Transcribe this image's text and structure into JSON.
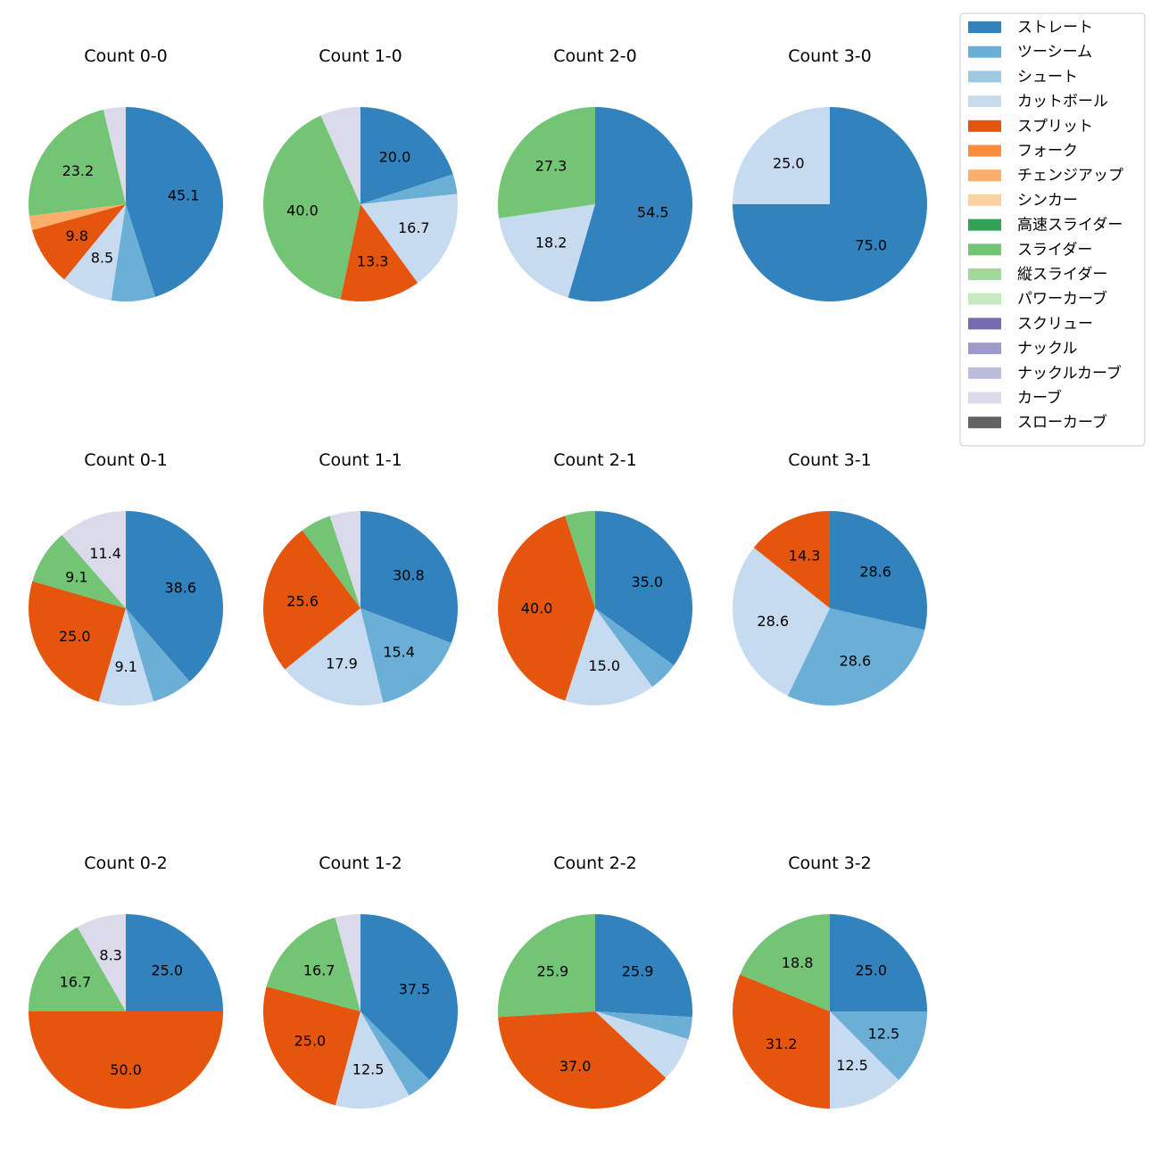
{
  "chart_data": {
    "type": "pie",
    "legend": {
      "placement": "top-right",
      "entries": [
        {
          "name": "ストレート",
          "color": "#3182bd"
        },
        {
          "name": "ツーシーム",
          "color": "#6baed6"
        },
        {
          "name": "シュート",
          "color": "#9ecae1"
        },
        {
          "name": "カットボール",
          "color": "#c6dbef"
        },
        {
          "name": "スプリット",
          "color": "#e6550d"
        },
        {
          "name": "フォーク",
          "color": "#fd8d3c"
        },
        {
          "name": "チェンジアップ",
          "color": "#fdae6b"
        },
        {
          "name": "シンカー",
          "color": "#fdd0a2"
        },
        {
          "name": "高速スライダー",
          "color": "#31a354"
        },
        {
          "name": "スライダー",
          "color": "#74c476"
        },
        {
          "name": "縦スライダー",
          "color": "#a1d99b"
        },
        {
          "name": "パワーカーブ",
          "color": "#c7e9c0"
        },
        {
          "name": "スクリュー",
          "color": "#756bb1"
        },
        {
          "name": "ナックル",
          "color": "#9e9ac8"
        },
        {
          "name": "ナックルカーブ",
          "color": "#bcbddc"
        },
        {
          "name": "カーブ",
          "color": "#dadaeb"
        },
        {
          "name": "スローカーブ",
          "color": "#636363"
        }
      ]
    },
    "charts": [
      {
        "title": "Count 0-0",
        "slices": [
          {
            "pitch": "ストレート",
            "value": 45.1,
            "label": "45.1"
          },
          {
            "pitch": "ツーシーム",
            "value": 7.3,
            "label": ""
          },
          {
            "pitch": "カットボール",
            "value": 8.5,
            "label": "8.5"
          },
          {
            "pitch": "スプリット",
            "value": 9.8,
            "label": "9.8"
          },
          {
            "pitch": "チェンジアップ",
            "value": 2.4,
            "label": ""
          },
          {
            "pitch": "スライダー",
            "value": 23.2,
            "label": "23.2"
          },
          {
            "pitch": "カーブ",
            "value": 3.7,
            "label": ""
          }
        ]
      },
      {
        "title": "Count 1-0",
        "slices": [
          {
            "pitch": "ストレート",
            "value": 20.0,
            "label": "20.0"
          },
          {
            "pitch": "ツーシーム",
            "value": 3.3,
            "label": ""
          },
          {
            "pitch": "カットボール",
            "value": 16.7,
            "label": "16.7"
          },
          {
            "pitch": "スプリット",
            "value": 13.3,
            "label": "13.3"
          },
          {
            "pitch": "スライダー",
            "value": 40.0,
            "label": "40.0"
          },
          {
            "pitch": "カーブ",
            "value": 6.7,
            "label": ""
          }
        ]
      },
      {
        "title": "Count 2-0",
        "slices": [
          {
            "pitch": "ストレート",
            "value": 54.5,
            "label": "54.5"
          },
          {
            "pitch": "カットボール",
            "value": 18.2,
            "label": "18.2"
          },
          {
            "pitch": "スライダー",
            "value": 27.3,
            "label": "27.3"
          }
        ]
      },
      {
        "title": "Count 3-0",
        "slices": [
          {
            "pitch": "ストレート",
            "value": 75.0,
            "label": "75.0"
          },
          {
            "pitch": "カットボール",
            "value": 25.0,
            "label": "25.0"
          }
        ]
      },
      {
        "title": "Count 0-1",
        "slices": [
          {
            "pitch": "ストレート",
            "value": 38.6,
            "label": "38.6"
          },
          {
            "pitch": "ツーシーム",
            "value": 6.8,
            "label": ""
          },
          {
            "pitch": "カットボール",
            "value": 9.1,
            "label": "9.1"
          },
          {
            "pitch": "スプリット",
            "value": 25.0,
            "label": "25.0"
          },
          {
            "pitch": "スライダー",
            "value": 9.1,
            "label": "9.1"
          },
          {
            "pitch": "カーブ",
            "value": 11.4,
            "label": "11.4"
          }
        ]
      },
      {
        "title": "Count 1-1",
        "slices": [
          {
            "pitch": "ストレート",
            "value": 30.8,
            "label": "30.8"
          },
          {
            "pitch": "ツーシーム",
            "value": 15.4,
            "label": "15.4"
          },
          {
            "pitch": "カットボール",
            "value": 17.9,
            "label": "17.9"
          },
          {
            "pitch": "スプリット",
            "value": 25.6,
            "label": "25.6"
          },
          {
            "pitch": "スライダー",
            "value": 5.1,
            "label": ""
          },
          {
            "pitch": "カーブ",
            "value": 5.1,
            "label": ""
          }
        ]
      },
      {
        "title": "Count 2-1",
        "slices": [
          {
            "pitch": "ストレート",
            "value": 35.0,
            "label": "35.0"
          },
          {
            "pitch": "ツーシーム",
            "value": 5.0,
            "label": ""
          },
          {
            "pitch": "カットボール",
            "value": 15.0,
            "label": "15.0"
          },
          {
            "pitch": "スプリット",
            "value": 40.0,
            "label": "40.0"
          },
          {
            "pitch": "スライダー",
            "value": 5.0,
            "label": ""
          }
        ]
      },
      {
        "title": "Count 3-1",
        "slices": [
          {
            "pitch": "ストレート",
            "value": 28.6,
            "label": "28.6"
          },
          {
            "pitch": "ツーシーム",
            "value": 28.6,
            "label": "28.6"
          },
          {
            "pitch": "カットボール",
            "value": 28.6,
            "label": "28.6"
          },
          {
            "pitch": "スプリット",
            "value": 14.3,
            "label": "14.3"
          }
        ]
      },
      {
        "title": "Count 0-2",
        "slices": [
          {
            "pitch": "ストレート",
            "value": 25.0,
            "label": "25.0"
          },
          {
            "pitch": "スプリット",
            "value": 50.0,
            "label": "50.0"
          },
          {
            "pitch": "スライダー",
            "value": 16.7,
            "label": "16.7"
          },
          {
            "pitch": "カーブ",
            "value": 8.3,
            "label": "8.3"
          }
        ]
      },
      {
        "title": "Count 1-2",
        "slices": [
          {
            "pitch": "ストレート",
            "value": 37.5,
            "label": "37.5"
          },
          {
            "pitch": "ツーシーム",
            "value": 4.2,
            "label": ""
          },
          {
            "pitch": "カットボール",
            "value": 12.5,
            "label": "12.5"
          },
          {
            "pitch": "スプリット",
            "value": 25.0,
            "label": "25.0"
          },
          {
            "pitch": "スライダー",
            "value": 16.7,
            "label": "16.7"
          },
          {
            "pitch": "カーブ",
            "value": 4.2,
            "label": ""
          }
        ]
      },
      {
        "title": "Count 2-2",
        "slices": [
          {
            "pitch": "ストレート",
            "value": 25.9,
            "label": "25.9"
          },
          {
            "pitch": "ツーシーム",
            "value": 3.7,
            "label": ""
          },
          {
            "pitch": "カットボール",
            "value": 7.4,
            "label": ""
          },
          {
            "pitch": "スプリット",
            "value": 37.0,
            "label": "37.0"
          },
          {
            "pitch": "スライダー",
            "value": 25.9,
            "label": "25.9"
          }
        ]
      },
      {
        "title": "Count 3-2",
        "slices": [
          {
            "pitch": "ストレート",
            "value": 25.0,
            "label": "25.0"
          },
          {
            "pitch": "ツーシーム",
            "value": 12.5,
            "label": "12.5"
          },
          {
            "pitch": "カットボール",
            "value": 12.5,
            "label": "12.5"
          },
          {
            "pitch": "スプリット",
            "value": 31.2,
            "label": "31.2"
          },
          {
            "pitch": "スライダー",
            "value": 18.8,
            "label": "18.8"
          }
        ]
      }
    ]
  }
}
